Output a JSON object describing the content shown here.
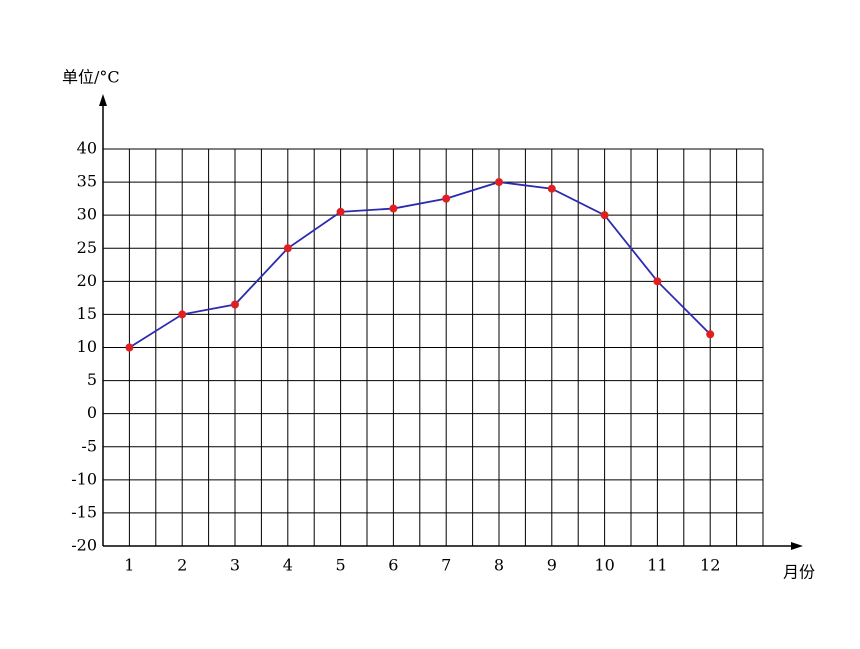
{
  "chart_data": {
    "type": "line",
    "y_label": "单位/°C",
    "x_label": "月份",
    "x": [
      1,
      2,
      3,
      4,
      5,
      6,
      7,
      8,
      9,
      10,
      11,
      12
    ],
    "series": [
      {
        "color": "#2b2bb0",
        "marker_color": "#e02020",
        "values": [
          10,
          15,
          16.5,
          25,
          30.5,
          31,
          32.5,
          35,
          34,
          30,
          20,
          12
        ]
      }
    ],
    "xlim": [
      0.5,
      13
    ],
    "xticks": [
      1,
      2,
      3,
      4,
      5,
      6,
      7,
      8,
      9,
      10,
      11,
      12
    ],
    "ylim": [
      -20,
      40
    ],
    "yticks": [
      -20,
      -15,
      -10,
      -5,
      0,
      5,
      10,
      15,
      20,
      25,
      30,
      35,
      40
    ],
    "grid": true
  }
}
